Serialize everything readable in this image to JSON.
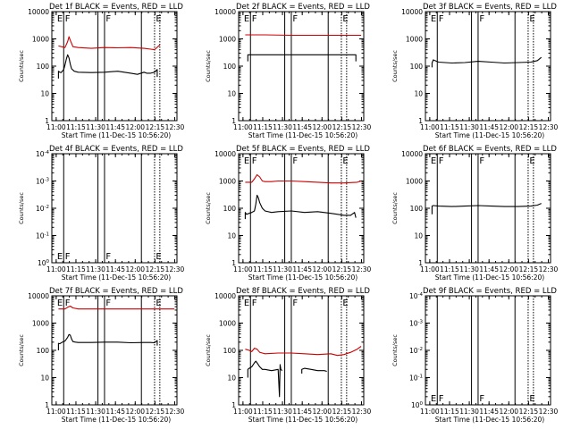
{
  "colors": {
    "events": "#000000",
    "lld": "#cc0000",
    "frame": "#000000"
  },
  "chart_data": [
    {
      "type": "line",
      "title": "Det 1f BLACK = Events, RED = LLD",
      "ylabel": "Counts/sec",
      "xlabel": "Start Time (11-Dec-15 10:56:20)",
      "scale": "log",
      "ylim": [
        1,
        10000
      ],
      "yticks": [
        "1",
        "10",
        "100",
        "1000",
        "10000"
      ],
      "xlim": [
        0,
        95
      ],
      "xticks": [
        "11:00",
        "11:15",
        "11:30",
        "11:45",
        "12:00",
        "12:15",
        "12:30"
      ],
      "solid_markers_min": [
        9,
        35,
        40,
        68
      ],
      "dotted_markers_min": [
        78,
        82
      ],
      "marker_labels": [
        {
          "text": "E",
          "x": 4,
          "pos": "top"
        },
        {
          "text": "F",
          "x": 10,
          "pos": "top"
        },
        {
          "text": "F",
          "x": 41,
          "pos": "top"
        },
        {
          "text": "E",
          "x": 79,
          "pos": "top"
        }
      ],
      "series": [
        {
          "name": "LLD",
          "color": "lld",
          "x": [
            5,
            10,
            12,
            13,
            14,
            16,
            20,
            30,
            40,
            50,
            60,
            70,
            75,
            78,
            82
          ],
          "y": [
            550,
            480,
            800,
            1200,
            900,
            520,
            480,
            450,
            480,
            470,
            480,
            450,
            420,
            400,
            600
          ]
        },
        {
          "name": "Events",
          "color": "events",
          "x": [
            5,
            5,
            6,
            7,
            9,
            10,
            11,
            12,
            13,
            14,
            15,
            17,
            20,
            30,
            40,
            50,
            60,
            65,
            70,
            72,
            75,
            78,
            80,
            80
          ],
          "y": [
            35,
            65,
            60,
            58,
            75,
            110,
            180,
            260,
            200,
            120,
            80,
            65,
            60,
            58,
            60,
            65,
            55,
            50,
            60,
            55,
            55,
            60,
            75,
            40
          ]
        }
      ]
    },
    {
      "type": "line",
      "title": "Det 2f BLACK = Events, RED = LLD",
      "ylabel": "Counts/sec",
      "xlabel": "Start Time (11-Dec-15 10:56:20)",
      "scale": "log",
      "ylim": [
        1,
        10000
      ],
      "yticks": [
        "1",
        "10",
        "100",
        "1000",
        "10000"
      ],
      "xlim": [
        0,
        95
      ],
      "xticks": [
        "11:00",
        "11:15",
        "11:30",
        "11:45",
        "12:00",
        "12:15",
        "12:30"
      ],
      "solid_markers_min": [
        9,
        35,
        40,
        68
      ],
      "dotted_markers_min": [
        78,
        82
      ],
      "marker_labels": [
        {
          "text": "E",
          "x": 4,
          "pos": "top"
        },
        {
          "text": "F",
          "x": 10,
          "pos": "top"
        },
        {
          "text": "F",
          "x": 41,
          "pos": "top"
        },
        {
          "text": "E",
          "x": 79,
          "pos": "top"
        }
      ],
      "series": [
        {
          "name": "LLD",
          "color": "lld",
          "x": [
            5,
            20,
            40,
            60,
            80,
            93
          ],
          "y": [
            1400,
            1400,
            1350,
            1350,
            1350,
            1350
          ]
        },
        {
          "name": "Events",
          "color": "events",
          "x": [
            7,
            7,
            20,
            40,
            60,
            75,
            89,
            89
          ],
          "y": [
            150,
            260,
            260,
            260,
            260,
            260,
            260,
            150
          ]
        }
      ]
    },
    {
      "type": "line",
      "title": "Det 3f BLACK = Events, RED = LLD",
      "ylabel": "Counts/sec",
      "xlabel": "Start Time (11-Dec-15 10:56:20)",
      "scale": "log",
      "ylim": [
        1,
        10000
      ],
      "yticks": [
        "1",
        "10",
        "100",
        "1000",
        "10000"
      ],
      "xlim": [
        0,
        95
      ],
      "xticks": [
        "11:00",
        "11:15",
        "11:30",
        "11:45",
        "12:00",
        "12:15",
        "12:30"
      ],
      "solid_markers_min": [
        9,
        35,
        40,
        68
      ],
      "dotted_markers_min": [
        78,
        82
      ],
      "marker_labels": [
        {
          "text": "E",
          "x": 4,
          "pos": "top"
        },
        {
          "text": "F",
          "x": 10,
          "pos": "top"
        },
        {
          "text": "F",
          "x": 41,
          "pos": "top"
        },
        {
          "text": "E",
          "x": 79,
          "pos": "top"
        }
      ],
      "series": [
        {
          "name": "Events",
          "color": "events",
          "x": [
            5,
            5,
            6,
            10,
            20,
            30,
            40,
            50,
            60,
            70,
            80,
            85,
            88
          ],
          "y": [
            90,
            130,
            170,
            140,
            130,
            135,
            150,
            140,
            130,
            135,
            140,
            160,
            210
          ]
        }
      ]
    },
    {
      "type": "line",
      "title": "Det 4f BLACK = Events, RED = LLD",
      "ylabel": "Counts/sec",
      "xlabel": "Start Time (11-Dec-15 10:56:20)",
      "scale": "log",
      "ylim": [
        1,
        10000
      ],
      "yticks": [
        "10^0",
        "10^-1",
        "10^-2",
        "10^-3",
        "10^-4"
      ],
      "xlim": [
        0,
        95
      ],
      "xticks": [
        "11:00",
        "11:15",
        "11:30",
        "11:45",
        "12:00",
        "12:15",
        "12:30"
      ],
      "solid_markers_min": [
        9,
        35,
        40,
        68
      ],
      "dotted_markers_min": [
        78,
        82
      ],
      "marker_labels": [
        {
          "text": "E",
          "x": 4,
          "pos": "bottom"
        },
        {
          "text": "F",
          "x": 10,
          "pos": "bottom"
        },
        {
          "text": "F",
          "x": 41,
          "pos": "bottom"
        },
        {
          "text": "E",
          "x": 79,
          "pos": "bottom"
        }
      ],
      "series": []
    },
    {
      "type": "line",
      "title": "Det 5f BLACK = Events, RED = LLD",
      "ylabel": "Counts/sec",
      "xlabel": "Start Time (11-Dec-15 10:56:20)",
      "scale": "log",
      "ylim": [
        1,
        10000
      ],
      "yticks": [
        "1",
        "10",
        "100",
        "1000",
        "10000"
      ],
      "xlim": [
        0,
        95
      ],
      "xticks": [
        "11:00",
        "11:15",
        "11:30",
        "11:45",
        "12:00",
        "12:15",
        "12:30"
      ],
      "solid_markers_min": [
        9,
        35,
        40,
        68
      ],
      "dotted_markers_min": [
        78,
        82
      ],
      "marker_labels": [
        {
          "text": "E",
          "x": 4,
          "pos": "top"
        },
        {
          "text": "F",
          "x": 10,
          "pos": "top"
        },
        {
          "text": "F",
          "x": 41,
          "pos": "top"
        },
        {
          "text": "E",
          "x": 79,
          "pos": "top"
        }
      ],
      "series": [
        {
          "name": "LLD",
          "color": "lld",
          "x": [
            5,
            10,
            12,
            14,
            16,
            18,
            20,
            25,
            30,
            40,
            50,
            60,
            70,
            80,
            90,
            93
          ],
          "y": [
            900,
            900,
            1200,
            1700,
            1400,
            1000,
            950,
            950,
            1000,
            1000,
            950,
            900,
            850,
            850,
            900,
            1000
          ]
        },
        {
          "name": "Events",
          "color": "events",
          "x": [
            5,
            5,
            6,
            8,
            10,
            12,
            13,
            14,
            15,
            16,
            18,
            20,
            25,
            30,
            40,
            50,
            60,
            70,
            80,
            85,
            88,
            89
          ],
          "y": [
            40,
            70,
            60,
            65,
            70,
            80,
            140,
            300,
            240,
            160,
            100,
            80,
            70,
            75,
            80,
            70,
            75,
            65,
            55,
            55,
            70,
            45
          ]
        }
      ]
    },
    {
      "type": "line",
      "title": "Det 6f BLACK = Events, RED = LLD",
      "ylabel": "Counts/sec",
      "xlabel": "Start Time (11-Dec-15 10:56:20)",
      "scale": "log",
      "ylim": [
        1,
        10000
      ],
      "yticks": [
        "1",
        "10",
        "100",
        "1000",
        "10000"
      ],
      "xlim": [
        0,
        95
      ],
      "xticks": [
        "11:00",
        "11:15",
        "11:30",
        "11:45",
        "12:00",
        "12:15",
        "12:30"
      ],
      "solid_markers_min": [
        9,
        35,
        40,
        68
      ],
      "dotted_markers_min": [
        78,
        82
      ],
      "marker_labels": [
        {
          "text": "E",
          "x": 4,
          "pos": "top"
        },
        {
          "text": "F",
          "x": 10,
          "pos": "top"
        },
        {
          "text": "F",
          "x": 41,
          "pos": "top"
        },
        {
          "text": "E",
          "x": 79,
          "pos": "top"
        }
      ],
      "series": [
        {
          "name": "Events",
          "color": "events",
          "x": [
            5,
            5,
            6,
            10,
            20,
            30,
            40,
            50,
            60,
            70,
            80,
            85,
            88
          ],
          "y": [
            60,
            120,
            125,
            120,
            115,
            120,
            125,
            120,
            115,
            115,
            120,
            130,
            150
          ]
        }
      ]
    },
    {
      "type": "line",
      "title": "Det 7f BLACK = Events, RED = LLD",
      "ylabel": "Counts/sec",
      "xlabel": "Start Time (11-Dec-15 10:56:20)",
      "scale": "log",
      "ylim": [
        1,
        10000
      ],
      "yticks": [
        "1",
        "10",
        "100",
        "1000",
        "10000"
      ],
      "xlim": [
        0,
        95
      ],
      "xticks": [
        "11:00",
        "11:15",
        "11:30",
        "11:45",
        "12:00",
        "12:15",
        "12:30"
      ],
      "solid_markers_min": [
        9,
        35,
        40,
        68
      ],
      "dotted_markers_min": [
        78,
        82
      ],
      "marker_labels": [
        {
          "text": "E",
          "x": 4,
          "pos": "top"
        },
        {
          "text": "F",
          "x": 10,
          "pos": "top"
        },
        {
          "text": "F",
          "x": 41,
          "pos": "top"
        },
        {
          "text": "E",
          "x": 79,
          "pos": "top"
        }
      ],
      "series": [
        {
          "name": "LLD",
          "color": "lld",
          "x": [
            5,
            10,
            12,
            14,
            16,
            20,
            30,
            40,
            50,
            60,
            70,
            80,
            93
          ],
          "y": [
            3300,
            3300,
            3800,
            4200,
            3600,
            3300,
            3300,
            3300,
            3300,
            3300,
            3300,
            3300,
            3300
          ]
        },
        {
          "name": "Events",
          "color": "events",
          "x": [
            5,
            5,
            6,
            8,
            10,
            12,
            13,
            14,
            15,
            16,
            18,
            20,
            30,
            40,
            50,
            60,
            70,
            75,
            78,
            80,
            80
          ],
          "y": [
            100,
            180,
            175,
            200,
            220,
            300,
            380,
            360,
            260,
            210,
            200,
            195,
            195,
            200,
            200,
            190,
            195,
            195,
            190,
            230,
            150
          ]
        }
      ]
    },
    {
      "type": "line",
      "title": "Det 8f BLACK = Events, RED = LLD",
      "ylabel": "Counts/sec",
      "xlabel": "Start Time (11-Dec-15 10:56:20)",
      "scale": "log",
      "ylim": [
        1,
        10000
      ],
      "yticks": [
        "1",
        "10",
        "100",
        "1000",
        "10000"
      ],
      "xlim": [
        0,
        95
      ],
      "xticks": [
        "11:00",
        "11:15",
        "11:30",
        "11:45",
        "12:00",
        "12:15",
        "12:30"
      ],
      "solid_markers_min": [
        9,
        35,
        40,
        68
      ],
      "dotted_markers_min": [
        78,
        82
      ],
      "marker_labels": [
        {
          "text": "E",
          "x": 4,
          "pos": "top"
        },
        {
          "text": "F",
          "x": 10,
          "pos": "top"
        },
        {
          "text": "F",
          "x": 41,
          "pos": "top"
        },
        {
          "text": "E",
          "x": 79,
          "pos": "top"
        }
      ],
      "series": [
        {
          "name": "LLD",
          "color": "lld",
          "x": [
            5,
            8,
            10,
            12,
            14,
            16,
            18,
            20,
            30,
            40,
            50,
            60,
            70,
            75,
            80,
            85,
            90,
            93
          ],
          "y": [
            110,
            100,
            90,
            120,
            110,
            85,
            80,
            75,
            80,
            80,
            75,
            70,
            75,
            65,
            70,
            85,
            110,
            140
          ]
        },
        {
          "name": "Events",
          "color": "events",
          "x": [
            7,
            7,
            8,
            10,
            12,
            13,
            14,
            16,
            18,
            20,
            25,
            30,
            31,
            31.5,
            32,
            33,
            33,
            33
          ],
          "y": [
            10,
            20,
            22,
            25,
            35,
            40,
            35,
            25,
            20,
            20,
            18,
            20,
            2,
            30,
            20,
            18,
            18,
            18
          ]
        },
        {
          "name": "Events2",
          "color": "events",
          "x": [
            48,
            48,
            50,
            55,
            60,
            65,
            67
          ],
          "y": [
            14,
            20,
            22,
            20,
            18,
            18,
            17
          ]
        }
      ]
    },
    {
      "type": "line",
      "title": "Det 9f BLACK = Events, RED = LLD",
      "ylabel": "Counts/sec",
      "xlabel": "Start Time (11-Dec-15 10:56:20)",
      "scale": "log",
      "ylim": [
        1,
        10000
      ],
      "yticks": [
        "10^0",
        "10^-1",
        "10^-2",
        "10^-3",
        "10^-4"
      ],
      "xlim": [
        0,
        95
      ],
      "xticks": [
        "11:00",
        "11:15",
        "11:30",
        "11:45",
        "12:00",
        "12:15",
        "12:30"
      ],
      "solid_markers_min": [
        9,
        35,
        40,
        68
      ],
      "dotted_markers_min": [
        78,
        82
      ],
      "marker_labels": [
        {
          "text": "E",
          "x": 4,
          "pos": "bottom"
        },
        {
          "text": "F",
          "x": 10,
          "pos": "bottom"
        },
        {
          "text": "F",
          "x": 41,
          "pos": "bottom"
        },
        {
          "text": "E",
          "x": 79,
          "pos": "bottom"
        }
      ],
      "series": []
    }
  ]
}
